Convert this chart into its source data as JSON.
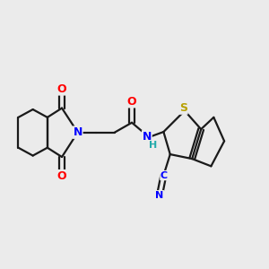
{
  "background_color": "#ebebeb",
  "bond_color": "#1a1a1a",
  "bond_width": 1.6,
  "atom_colors": {
    "N": "#0000ff",
    "O": "#ff0000",
    "S": "#b8a000",
    "C_cyan": "#0000ff",
    "H": "#22aaaa"
  },
  "figsize": [
    3.0,
    3.0
  ],
  "dpi": 100
}
